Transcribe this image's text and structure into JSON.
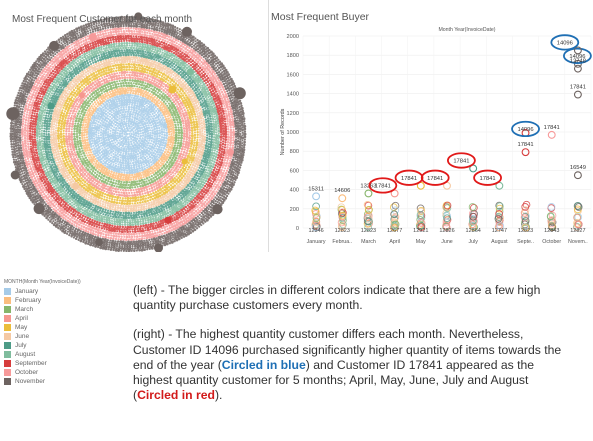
{
  "left_chart": {
    "title": "Most Frequent Customer for each month"
  },
  "legend": {
    "title": "MONTH(Month Year(InvoiceDate))",
    "items": [
      {
        "label": "January",
        "color": "#a6cbe8"
      },
      {
        "label": "February",
        "color": "#fbbd7e"
      },
      {
        "label": "March",
        "color": "#86b56a"
      },
      {
        "label": "April",
        "color": "#f6978f"
      },
      {
        "label": "May",
        "color": "#ebbd3a"
      },
      {
        "label": "June",
        "color": "#f5c9a3"
      },
      {
        "label": "July",
        "color": "#4d9b87"
      },
      {
        "label": "August",
        "color": "#7fbc9d"
      },
      {
        "label": "September",
        "color": "#d63c3c"
      },
      {
        "label": "October",
        "color": "#f79a9a"
      },
      {
        "label": "November",
        "color": "#6d6360"
      }
    ]
  },
  "chart_data": {
    "type": "scatter",
    "title": "Most Frequent Buyer",
    "subtitle": "Month Year(InvoiceDate)",
    "ylabel": "Number of Records",
    "ylim": [
      0,
      2000
    ],
    "yticks": [
      0,
      200,
      400,
      600,
      800,
      1000,
      1200,
      1400,
      1600,
      1800,
      2000
    ],
    "categories": [
      "January",
      "Februa..",
      "March",
      "April",
      "May",
      "June",
      "July",
      "August",
      "Septe..",
      "October",
      "Novem.."
    ],
    "bottom_labels": [
      "12346",
      "12823",
      "12823",
      "12677",
      "12921",
      "12826",
      "12864",
      "12747",
      "12823",
      "12843",
      "12827"
    ],
    "labeled_points": [
      {
        "month_index": 0,
        "customer": "15311",
        "value": 330,
        "circled": ""
      },
      {
        "month_index": 1,
        "customer": "14606",
        "value": 310,
        "circled": ""
      },
      {
        "month_index": 2,
        "customer": "13263",
        "value": 360,
        "circled": ""
      },
      {
        "month_index": 3,
        "customer": "17841",
        "value": 360,
        "circled": "red"
      },
      {
        "month_index": 4,
        "customer": "17841",
        "value": 440,
        "circled": "red"
      },
      {
        "month_index": 5,
        "customer": "17841",
        "value": 440,
        "circled": "red"
      },
      {
        "month_index": 6,
        "customer": "17841",
        "value": 620,
        "circled": "red"
      },
      {
        "month_index": 7,
        "customer": "17841",
        "value": 440,
        "circled": "red"
      },
      {
        "month_index": 8,
        "customer": "14096",
        "value": 990,
        "circled": "blue"
      },
      {
        "month_index": 8,
        "customer": "17841",
        "value": 790,
        "circled": ""
      },
      {
        "month_index": 9,
        "customer": "17841",
        "value": 970,
        "circled": ""
      },
      {
        "month_index": 10,
        "customer": "14096",
        "value": 1710,
        "circled": "blue"
      },
      {
        "month_index": 10,
        "customer": "14096",
        "value": 1850,
        "circled": "blue"
      },
      {
        "month_index": 10,
        "customer": "12748",
        "value": 1660,
        "circled": ""
      },
      {
        "month_index": 10,
        "customer": "17841",
        "value": 1390,
        "circled": ""
      },
      {
        "month_index": 10,
        "customer": "16549",
        "value": 550,
        "circled": ""
      }
    ]
  },
  "text": {
    "left_pre": "(left) - The bigger circles in different colors indicate that there are a few high quantity purchase customers every month.",
    "right_pre": "(right) - The highest quantity customer differs each month. Nevertheless, Customer ID 14096 purchased significantly higher quantity of items towards the end of the year (",
    "circled_blue": "Circled in blue",
    "right_mid": ") and Customer ID 17841 appeared as the highest quantity customer for 5 months; April, May, June, July and August (",
    "circled_red": "Circled in red",
    "right_post": ")."
  }
}
